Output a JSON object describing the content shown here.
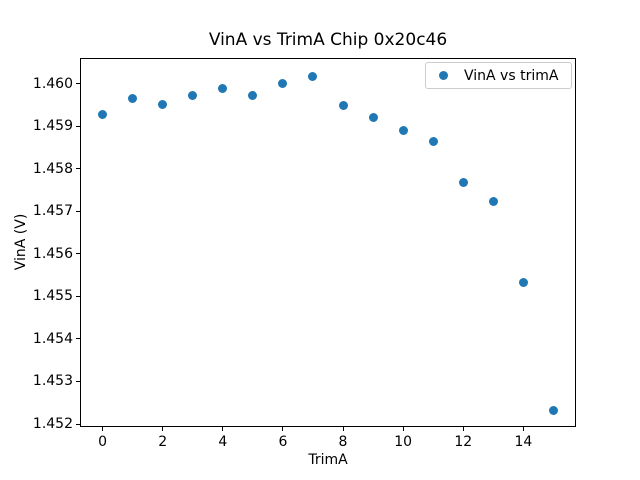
{
  "title": "VinA vs TrimA Chip 0x20c46",
  "chart_data": {
    "type": "scatter",
    "title": "VinA vs TrimA Chip 0x20c46",
    "xlabel": "TrimA",
    "ylabel": "VinA (V)",
    "grid": false,
    "legend_position": "upper right",
    "marker_color": "#1f77b4",
    "xlim": [
      -0.75,
      15.75
    ],
    "ylim": [
      1.45193,
      1.4606
    ],
    "xticks": [
      {
        "value": 0,
        "label": "0"
      },
      {
        "value": 2,
        "label": "2"
      },
      {
        "value": 4,
        "label": "4"
      },
      {
        "value": 6,
        "label": "6"
      },
      {
        "value": 8,
        "label": "8"
      },
      {
        "value": 10,
        "label": "10"
      },
      {
        "value": 12,
        "label": "12"
      },
      {
        "value": 14,
        "label": "14"
      }
    ],
    "yticks": [
      {
        "value": 1.452,
        "label": "1.452"
      },
      {
        "value": 1.453,
        "label": "1.453"
      },
      {
        "value": 1.454,
        "label": "1.454"
      },
      {
        "value": 1.455,
        "label": "1.455"
      },
      {
        "value": 1.456,
        "label": "1.456"
      },
      {
        "value": 1.457,
        "label": "1.457"
      },
      {
        "value": 1.458,
        "label": "1.458"
      },
      {
        "value": 1.459,
        "label": "1.459"
      },
      {
        "value": 1.46,
        "label": "1.460"
      }
    ],
    "series": [
      {
        "name": "VinA vs trimA",
        "points": [
          {
            "x": 0,
            "y": 1.45927
          },
          {
            "x": 1,
            "y": 1.45964
          },
          {
            "x": 2,
            "y": 1.45951
          },
          {
            "x": 3,
            "y": 1.45973
          },
          {
            "x": 4,
            "y": 1.45988
          },
          {
            "x": 5,
            "y": 1.45971
          },
          {
            "x": 6,
            "y": 1.46001
          },
          {
            "x": 7,
            "y": 1.46016
          },
          {
            "x": 8,
            "y": 1.45949
          },
          {
            "x": 9,
            "y": 1.4592
          },
          {
            "x": 10,
            "y": 1.4589
          },
          {
            "x": 11,
            "y": 1.45864
          },
          {
            "x": 12,
            "y": 1.45768
          },
          {
            "x": 13,
            "y": 1.45724
          },
          {
            "x": 14,
            "y": 1.45532
          },
          {
            "x": 15,
            "y": 1.45231
          }
        ]
      }
    ],
    "legend": [
      "VinA vs trimA"
    ]
  }
}
